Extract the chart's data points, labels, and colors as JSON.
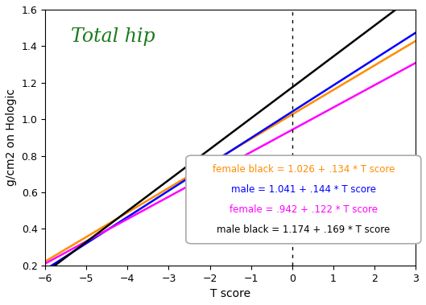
{
  "title": "Total hip",
  "xlabel": "T score",
  "ylabel": "g/cm2 on Hologic",
  "xlim": [
    -6,
    3
  ],
  "ylim": [
    0.2,
    1.6
  ],
  "xticks": [
    -6,
    -5,
    -4,
    -3,
    -2,
    -1,
    0,
    1,
    2,
    3
  ],
  "yticks": [
    0.2,
    0.4,
    0.6,
    0.8,
    1.0,
    1.2,
    1.4,
    1.6
  ],
  "lines": [
    {
      "intercept": 1.026,
      "slope": 0.134,
      "color": "#FF8C00",
      "label": "female black = 1.026 + .134 * T score",
      "label_color": "#FF8C00"
    },
    {
      "intercept": 1.041,
      "slope": 0.144,
      "color": "#0000FF",
      "label": "male = 1.041 + .144 * T score",
      "label_color": "#0000FF"
    },
    {
      "intercept": 0.942,
      "slope": 0.122,
      "color": "#FF00FF",
      "label": "female = .942 + .122 * T score",
      "label_color": "#FF00FF"
    },
    {
      "intercept": 1.174,
      "slope": 0.169,
      "color": "#000000",
      "label": "male black = 1.174 + .169 * T score",
      "label_color": "#000000"
    }
  ],
  "vline_x": 0,
  "background_color": "#FFFFFF",
  "title_color": "#1A7A1A",
  "title_fontsize": 17,
  "axis_fontsize": 10,
  "legend_box_edgecolor": "#AAAAAA",
  "legend_fontsize": 8.5
}
